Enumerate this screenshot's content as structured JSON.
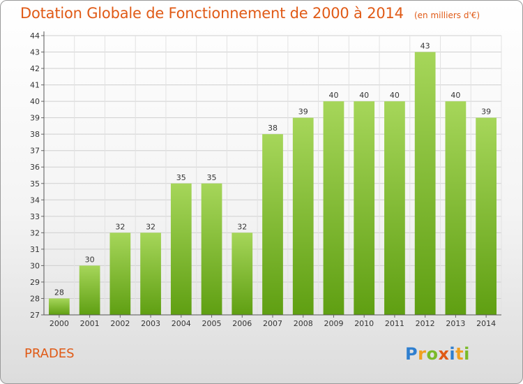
{
  "chart_data": {
    "type": "bar",
    "title": "Dotation Globale de Fonctionnement de 2000 à 2014",
    "subtitle": "(en milliers d'€)",
    "categories": [
      "2000",
      "2001",
      "2002",
      "2003",
      "2004",
      "2005",
      "2006",
      "2007",
      "2008",
      "2009",
      "2010",
      "2011",
      "2012",
      "2013",
      "2014"
    ],
    "values": [
      28,
      30,
      32,
      32,
      35,
      35,
      32,
      38,
      39,
      40,
      40,
      40,
      43,
      40,
      39
    ],
    "ylim": [
      27,
      44
    ],
    "yticks": [
      27,
      28,
      29,
      30,
      31,
      32,
      33,
      34,
      35,
      36,
      37,
      38,
      39,
      40,
      41,
      42,
      43,
      44
    ],
    "grid": true,
    "bar_color": "#7fbf2a"
  },
  "footer": {
    "commune": "PRADES",
    "logo_letters": [
      "P",
      "r",
      "o",
      "x",
      "i",
      "t",
      "i"
    ],
    "logo_colors": [
      "#2f7fcf",
      "#f0a020",
      "#7aba28",
      "#e05a16",
      "#2f7fcf",
      "#f0a020",
      "#7aba28"
    ]
  }
}
